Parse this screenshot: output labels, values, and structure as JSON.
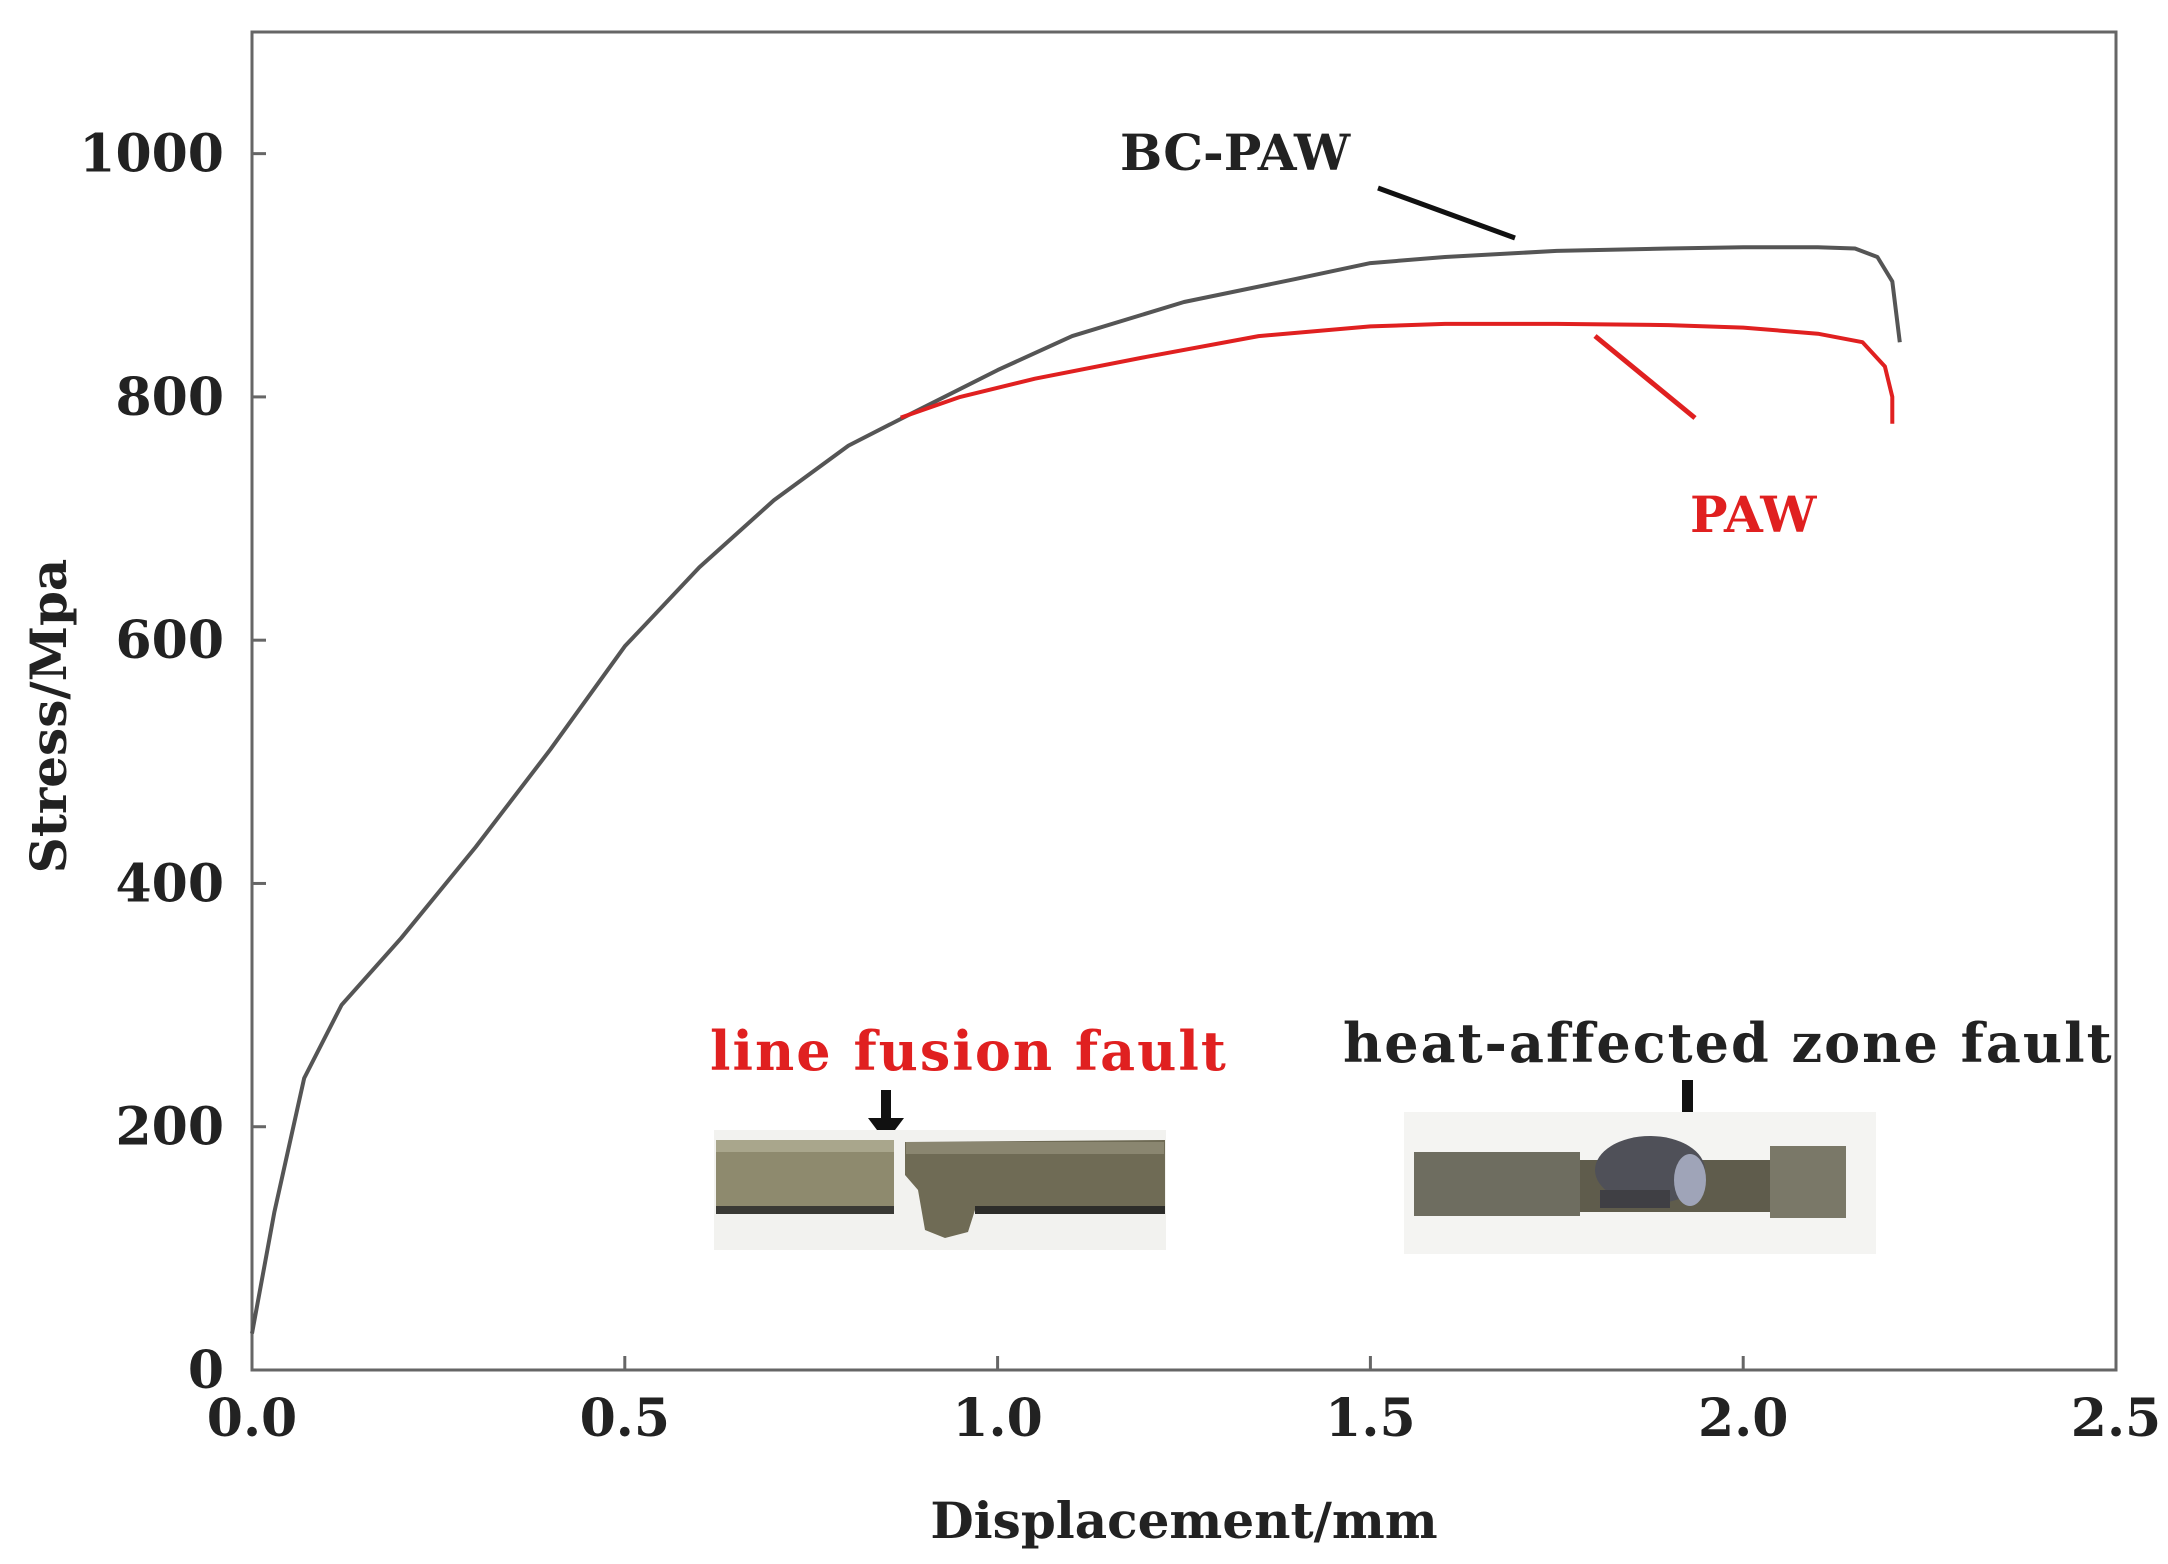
{
  "chart_data": {
    "type": "line",
    "xlabel": "Displacement/mm",
    "ylabel": "Stress/Mpa",
    "xlim": [
      0,
      2.5
    ],
    "ylim": [
      0,
      1100
    ],
    "x_ticks": [
      0.0,
      0.5,
      1.0,
      1.5,
      2.0,
      2.5
    ],
    "x_tick_labels": [
      "0.0",
      "0.5",
      "1.0",
      "1.5",
      "2.0",
      "2.5"
    ],
    "y_ticks": [
      0,
      200,
      400,
      600,
      800,
      1000
    ],
    "y_tick_labels": [
      "0",
      "200",
      "400",
      "600",
      "800",
      "1000"
    ],
    "grid": false,
    "series": [
      {
        "name": "BC-PAW",
        "color": "#555555",
        "points": [
          [
            0.0,
            30
          ],
          [
            0.03,
            130
          ],
          [
            0.07,
            240
          ],
          [
            0.12,
            300
          ],
          [
            0.2,
            355
          ],
          [
            0.3,
            430
          ],
          [
            0.4,
            510
          ],
          [
            0.5,
            595
          ],
          [
            0.6,
            660
          ],
          [
            0.7,
            715
          ],
          [
            0.8,
            760
          ],
          [
            0.88,
            785
          ],
          [
            1.0,
            822
          ],
          [
            1.1,
            850
          ],
          [
            1.25,
            878
          ],
          [
            1.4,
            897
          ],
          [
            1.5,
            910
          ],
          [
            1.6,
            915
          ],
          [
            1.75,
            920
          ],
          [
            1.9,
            922
          ],
          [
            2.0,
            923
          ],
          [
            2.1,
            923
          ],
          [
            2.15,
            922
          ],
          [
            2.18,
            915
          ],
          [
            2.2,
            895
          ],
          [
            2.21,
            845
          ]
        ]
      },
      {
        "name": "PAW",
        "color": "#e02020",
        "points": [
          [
            0.87,
            783
          ],
          [
            0.95,
            800
          ],
          [
            1.05,
            815
          ],
          [
            1.2,
            833
          ],
          [
            1.35,
            850
          ],
          [
            1.5,
            858
          ],
          [
            1.6,
            860
          ],
          [
            1.75,
            860
          ],
          [
            1.9,
            859
          ],
          [
            2.0,
            857
          ],
          [
            2.1,
            852
          ],
          [
            2.16,
            845
          ],
          [
            2.19,
            825
          ],
          [
            2.2,
            800
          ],
          [
            2.2,
            778
          ]
        ]
      }
    ],
    "annotations": [
      {
        "text": "BC-PAW",
        "color": "#222222"
      },
      {
        "text": "PAW",
        "color": "#e02020"
      },
      {
        "text": "line fusion fault",
        "color": "#e02020"
      },
      {
        "text": "heat-affected zone fault",
        "color": "#222222"
      }
    ]
  }
}
